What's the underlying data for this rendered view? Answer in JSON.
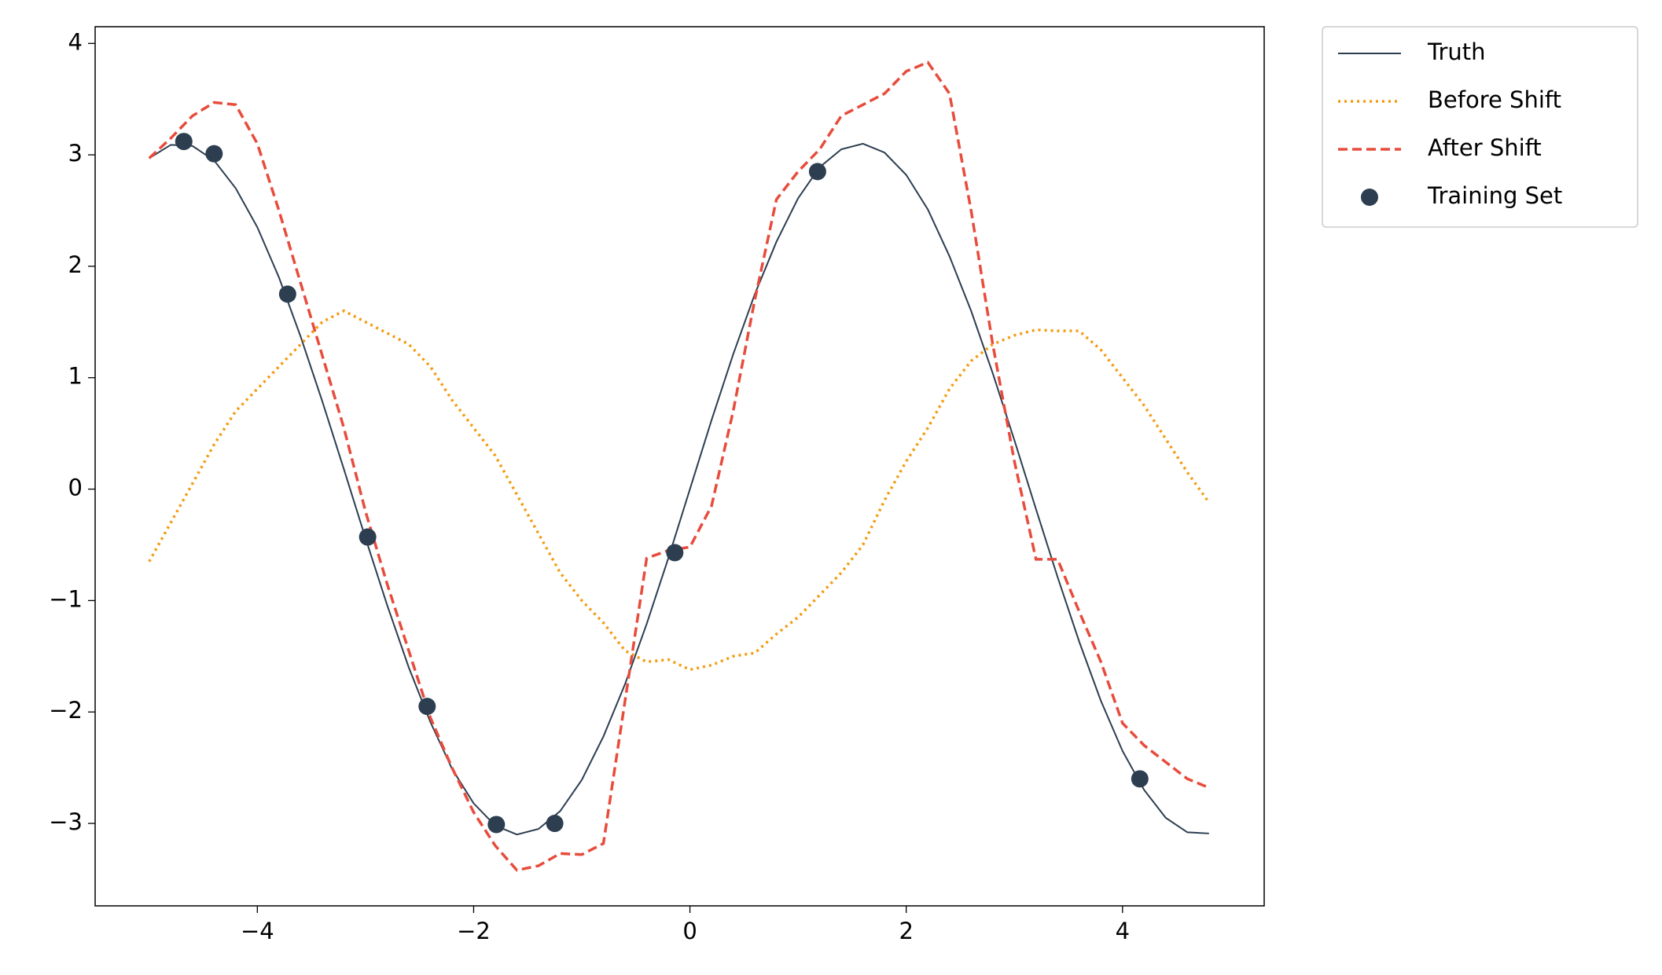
{
  "chart_data": {
    "type": "line",
    "x": [
      -5.0,
      -4.8,
      -4.6,
      -4.4,
      -4.2,
      -4.0,
      -3.8,
      -3.6,
      -3.4,
      -3.2,
      -3.0,
      -2.8,
      -2.6,
      -2.4,
      -2.2,
      -2.0,
      -1.8,
      -1.6,
      -1.4,
      -1.2,
      -1.0,
      -0.8,
      -0.6,
      -0.4,
      -0.2,
      0.0,
      0.2,
      0.4,
      0.6,
      0.8,
      1.0,
      1.2,
      1.4,
      1.6,
      1.8,
      2.0,
      2.2,
      2.4,
      2.6,
      2.8,
      3.0,
      3.2,
      3.4,
      3.6,
      3.8,
      4.0,
      4.2,
      4.4,
      4.6,
      4.8
    ],
    "series": [
      {
        "name": "Truth",
        "color": "#2c3e50",
        "style": "solid",
        "values": [
          2.97,
          3.09,
          3.08,
          2.95,
          2.7,
          2.35,
          1.9,
          1.37,
          0.79,
          0.18,
          -0.44,
          -1.04,
          -1.6,
          -2.09,
          -2.51,
          -2.82,
          -3.02,
          -3.1,
          -3.05,
          -2.89,
          -2.61,
          -2.22,
          -1.75,
          -1.21,
          -0.62,
          0.0,
          0.62,
          1.21,
          1.75,
          2.22,
          2.61,
          2.89,
          3.05,
          3.1,
          3.02,
          2.82,
          2.51,
          2.09,
          1.6,
          1.04,
          0.44,
          -0.18,
          -0.79,
          -1.37,
          -1.9,
          -2.35,
          -2.7,
          -2.95,
          -3.08,
          -3.09
        ]
      },
      {
        "name": "Before Shift",
        "color": "#f39c12",
        "style": "dotted",
        "values": [
          -0.65,
          -0.3,
          0.05,
          0.4,
          0.7,
          0.9,
          1.1,
          1.3,
          1.5,
          1.6,
          1.5,
          1.4,
          1.3,
          1.1,
          0.8,
          0.55,
          0.3,
          -0.05,
          -0.4,
          -0.75,
          -1.0,
          -1.2,
          -1.45,
          -1.55,
          -1.53,
          -1.62,
          -1.58,
          -1.5,
          -1.47,
          -1.3,
          -1.15,
          -0.95,
          -0.75,
          -0.5,
          -0.1,
          0.25,
          0.55,
          0.9,
          1.15,
          1.3,
          1.38,
          1.43,
          1.42,
          1.42,
          1.25,
          1.0,
          0.75,
          0.45,
          0.15,
          -0.12
        ]
      },
      {
        "name": "After Shift",
        "color": "#e74c3c",
        "style": "dashed",
        "values": [
          2.97,
          3.15,
          3.35,
          3.47,
          3.45,
          3.1,
          2.5,
          1.85,
          1.2,
          0.55,
          -0.2,
          -0.85,
          -1.45,
          -2.05,
          -2.5,
          -2.9,
          -3.2,
          -3.42,
          -3.38,
          -3.27,
          -3.28,
          -3.18,
          -1.9,
          -0.62,
          -0.55,
          -0.52,
          -0.15,
          0.7,
          1.7,
          2.6,
          2.85,
          3.05,
          3.35,
          3.45,
          3.55,
          3.75,
          3.83,
          3.55,
          2.5,
          1.3,
          0.25,
          -0.63,
          -0.63,
          -1.1,
          -1.55,
          -2.1,
          -2.3,
          -2.45,
          -2.6,
          -2.68
        ]
      },
      {
        "name": "Training Set",
        "color": "#2c3e50",
        "style": "markers",
        "x": [
          -4.68,
          -4.4,
          -3.72,
          -2.98,
          -2.43,
          -1.79,
          -1.25,
          -0.14,
          1.18,
          4.16
        ],
        "values": [
          3.12,
          3.01,
          1.75,
          -0.43,
          -1.95,
          -3.01,
          -3.0,
          -0.57,
          2.85,
          -2.6
        ]
      }
    ],
    "xlim": [
      -5.5,
      5.31
    ],
    "ylim": [
      -3.74,
      4.15
    ],
    "xticks": [
      {
        "value": -4,
        "label": "−4"
      },
      {
        "value": -2,
        "label": "−2"
      },
      0,
      2,
      4
    ],
    "yticks": [
      {
        "value": -3,
        "label": "−3"
      },
      {
        "value": -2,
        "label": "−2"
      },
      {
        "value": -1,
        "label": "−1"
      },
      0,
      1,
      2,
      3,
      4
    ],
    "legend": "outside upper right"
  }
}
